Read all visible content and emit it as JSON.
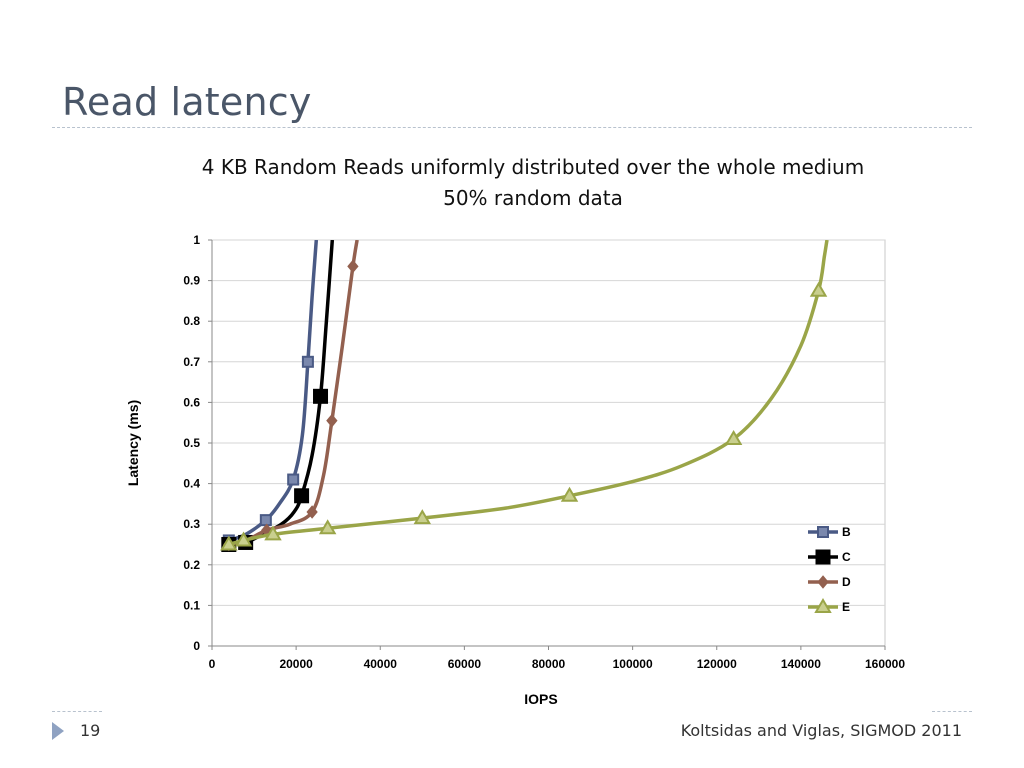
{
  "slide": {
    "title": "Read latency",
    "page_number": "19",
    "footer": "Koltsidas and Viglas, SIGMOD 2011"
  },
  "chart_data": {
    "type": "line",
    "title": "4 KB Random Reads uniformly distributed over the whole medium",
    "subtitle": "50% random data",
    "xlabel": "IOPS",
    "ylabel": "Latency (ms)",
    "xlim": [
      0,
      160000
    ],
    "ylim": [
      0,
      1
    ],
    "x_ticks": [
      0,
      20000,
      40000,
      60000,
      80000,
      100000,
      120000,
      140000,
      160000
    ],
    "y_ticks": [
      0,
      0.1,
      0.2,
      0.3,
      0.4,
      0.5,
      0.6,
      0.7,
      0.8,
      0.9,
      1
    ],
    "grid": true,
    "legend_position": "bottom-right",
    "series": [
      {
        "name": "B",
        "color": "#4a5a85",
        "marker": "square",
        "points": [
          [
            4000,
            0.26
          ],
          [
            12800,
            0.31
          ],
          [
            19300,
            0.41
          ],
          [
            22800,
            0.7
          ]
        ],
        "curve": [
          [
            4000,
            0.26
          ],
          [
            8000,
            0.275
          ],
          [
            12800,
            0.31
          ],
          [
            16000,
            0.35
          ],
          [
            19300,
            0.41
          ],
          [
            21500,
            0.52
          ],
          [
            22800,
            0.7
          ],
          [
            23800,
            0.86
          ],
          [
            24800,
            1.0
          ]
        ]
      },
      {
        "name": "C",
        "color": "#000000",
        "marker": "square-large",
        "points": [
          [
            4000,
            0.25
          ],
          [
            8000,
            0.255
          ],
          [
            21300,
            0.37
          ],
          [
            25800,
            0.615
          ]
        ],
        "curve": [
          [
            4000,
            0.25
          ],
          [
            8000,
            0.255
          ],
          [
            12000,
            0.275
          ],
          [
            16500,
            0.3
          ],
          [
            19500,
            0.33
          ],
          [
            21300,
            0.37
          ],
          [
            23800,
            0.47
          ],
          [
            25800,
            0.615
          ],
          [
            27200,
            0.8
          ],
          [
            28600,
            1.0
          ]
        ]
      },
      {
        "name": "D",
        "color": "#93604f",
        "marker": "diamond",
        "points": [
          [
            4000,
            0.25
          ],
          [
            13000,
            0.285
          ],
          [
            23800,
            0.33
          ],
          [
            28500,
            0.555
          ],
          [
            33500,
            0.935
          ]
        ],
        "curve": [
          [
            4000,
            0.25
          ],
          [
            8000,
            0.26
          ],
          [
            13000,
            0.285
          ],
          [
            18500,
            0.3
          ],
          [
            23800,
            0.33
          ],
          [
            26500,
            0.42
          ],
          [
            28500,
            0.555
          ],
          [
            31000,
            0.74
          ],
          [
            33500,
            0.935
          ],
          [
            34500,
            1.0
          ]
        ]
      },
      {
        "name": "E",
        "color": "#9aa548",
        "marker": "triangle",
        "points": [
          [
            4000,
            0.25
          ],
          [
            7500,
            0.26
          ],
          [
            14500,
            0.275
          ],
          [
            27500,
            0.29
          ],
          [
            50000,
            0.315
          ],
          [
            85000,
            0.37
          ],
          [
            124000,
            0.51
          ],
          [
            144200,
            0.875
          ]
        ],
        "curve": [
          [
            4000,
            0.25
          ],
          [
            7500,
            0.26
          ],
          [
            14500,
            0.275
          ],
          [
            27500,
            0.29
          ],
          [
            50000,
            0.315
          ],
          [
            70000,
            0.34
          ],
          [
            85000,
            0.37
          ],
          [
            100000,
            0.405
          ],
          [
            112000,
            0.445
          ],
          [
            124000,
            0.51
          ],
          [
            133000,
            0.61
          ],
          [
            140000,
            0.74
          ],
          [
            144200,
            0.875
          ],
          [
            145600,
            0.96
          ],
          [
            146200,
            1.0
          ]
        ]
      }
    ]
  }
}
